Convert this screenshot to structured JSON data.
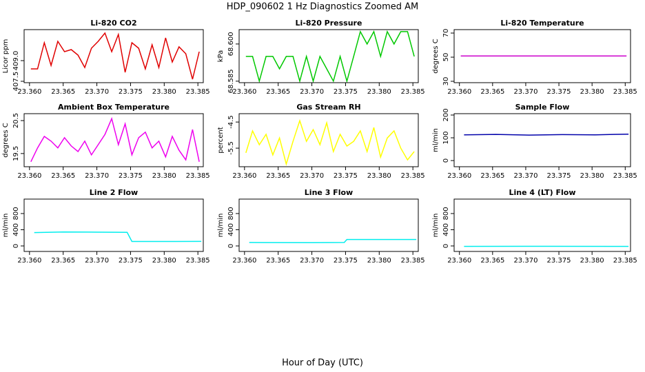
{
  "title": "HDP_090602  1 Hz Diagnostics Zoomed AM",
  "xlabel": "Hour of Day (UTC)",
  "chart_data": [
    {
      "type": "line",
      "title": "Li-820 CO2",
      "ylabel": "Licor ppm",
      "color": "#e00000",
      "x": [
        23.3602,
        23.3612,
        23.3622,
        23.3632,
        23.3642,
        23.3652,
        23.3662,
        23.3672,
        23.3682,
        23.3692,
        23.3702,
        23.3712,
        23.3722,
        23.3732,
        23.3742,
        23.3752,
        23.3762,
        23.3772,
        23.3782,
        23.3792,
        23.3802,
        23.3812,
        23.3822,
        23.3832,
        23.3842,
        23.3852
      ],
      "values": [
        408.4,
        408.4,
        410.3,
        408.65,
        410.4,
        409.65,
        409.8,
        409.4,
        408.5,
        409.9,
        410.4,
        411.0,
        409.65,
        410.9,
        408.15,
        410.3,
        409.9,
        408.4,
        410.15,
        408.5,
        410.65,
        408.9,
        410.0,
        409.5,
        407.65,
        409.65
      ],
      "xlim": [
        23.3592,
        23.3858
      ],
      "ylim": [
        407.4,
        411.25
      ],
      "xticks": [
        {
          "value": 23.36,
          "label": "23.360"
        },
        {
          "value": 23.365,
          "label": "23.365"
        },
        {
          "value": 23.37,
          "label": "23.370"
        },
        {
          "value": 23.375,
          "label": "23.375"
        },
        {
          "value": 23.38,
          "label": "23.380"
        },
        {
          "value": 23.385,
          "label": "23.385"
        }
      ],
      "yticks": [
        407.5,
        {
          "value": 409,
          "label": "409.0"
        }
      ]
    },
    {
      "type": "line",
      "title": "Li-820 Pressure",
      "ylabel": "kPa",
      "color": "#00c800",
      "x": [
        23.3602,
        23.3612,
        23.3622,
        23.3632,
        23.3642,
        23.3652,
        23.3662,
        23.3672,
        23.3682,
        23.3692,
        23.3702,
        23.3712,
        23.3722,
        23.3732,
        23.3742,
        23.3752,
        23.3762,
        23.3772,
        23.3782,
        23.3792,
        23.3802,
        23.3812,
        23.3822,
        23.3832,
        23.3842,
        23.3852
      ],
      "values": [
        68.595,
        68.595,
        68.585,
        68.595,
        68.595,
        68.59,
        68.595,
        68.595,
        68.585,
        68.595,
        68.585,
        68.595,
        68.59,
        68.585,
        68.595,
        68.585,
        68.595,
        68.605,
        68.6,
        68.605,
        68.595,
        68.605,
        68.6,
        68.605,
        68.605,
        68.595
      ],
      "xlim": [
        23.3592,
        23.3858
      ],
      "ylim": [
        68.5844,
        68.6058
      ],
      "xticks": [
        {
          "value": 23.36,
          "label": "23.360"
        },
        {
          "value": 23.365,
          "label": "23.365"
        },
        {
          "value": 23.37,
          "label": "23.370"
        },
        {
          "value": 23.375,
          "label": "23.375"
        },
        {
          "value": 23.38,
          "label": "23.380"
        },
        {
          "value": 23.385,
          "label": "23.385"
        }
      ],
      "yticks": [
        68.585,
        {
          "value": 68.6,
          "label": "68.600"
        }
      ]
    },
    {
      "type": "line",
      "title": "Li-820 Temperature",
      "ylabel": "degrees C",
      "color": "#cc00cc",
      "x": [
        23.3602,
        23.3852
      ],
      "values": [
        51,
        51
      ],
      "xlim": [
        23.3592,
        23.3858
      ],
      "ylim": [
        28.86,
        72.86
      ],
      "xticks": [
        {
          "value": 23.36,
          "label": "23.360"
        },
        {
          "value": 23.365,
          "label": "23.365"
        },
        {
          "value": 23.37,
          "label": "23.370"
        },
        {
          "value": 23.375,
          "label": "23.375"
        },
        {
          "value": 23.38,
          "label": "23.380"
        },
        {
          "value": 23.385,
          "label": "23.385"
        }
      ],
      "yticks": [
        30,
        50,
        70
      ]
    },
    {
      "type": "line",
      "title": "Ambient Box Temperature",
      "ylabel": "degrees C",
      "color": "#ee00ee",
      "x": [
        23.3602,
        23.3612,
        23.3622,
        23.3632,
        23.3642,
        23.3652,
        23.3662,
        23.3672,
        23.3682,
        23.3692,
        23.3702,
        23.3712,
        23.3722,
        23.3732,
        23.3742,
        23.3752,
        23.3762,
        23.3772,
        23.3782,
        23.3792,
        23.3802,
        23.3812,
        23.3822,
        23.3832,
        23.3842,
        23.3852
      ],
      "values": [
        19.25,
        19.67,
        20.02,
        19.875,
        19.67,
        19.98,
        19.73,
        19.56,
        19.875,
        19.46,
        19.77,
        20.08,
        20.56,
        19.77,
        20.4,
        19.46,
        19.98,
        20.15,
        19.67,
        19.875,
        19.4,
        20.02,
        19.6,
        19.31,
        20.23,
        19.25
      ],
      "xlim": [
        23.3592,
        23.3858
      ],
      "ylim": [
        19.1,
        20.71
      ],
      "xticks": [
        {
          "value": 23.36,
          "label": "23.360"
        },
        {
          "value": 23.365,
          "label": "23.365"
        },
        {
          "value": 23.37,
          "label": "23.370"
        },
        {
          "value": 23.375,
          "label": "23.375"
        },
        {
          "value": 23.38,
          "label": "23.380"
        },
        {
          "value": 23.385,
          "label": "23.385"
        }
      ],
      "yticks": [
        19.5,
        20.5
      ]
    },
    {
      "type": "line",
      "title": "Gas Stream RH",
      "ylabel": "percent",
      "color": "#ffff00",
      "x": [
        23.3602,
        23.3612,
        23.3622,
        23.3632,
        23.3642,
        23.3652,
        23.3662,
        23.3672,
        23.3682,
        23.3692,
        23.3702,
        23.3712,
        23.3722,
        23.3732,
        23.3742,
        23.3752,
        23.3762,
        23.3772,
        23.3782,
        23.3792,
        23.3802,
        23.3812,
        23.3822,
        23.3832,
        23.3842,
        23.3852
      ],
      "values": [
        -5.68,
        -4.84,
        -5.37,
        -4.97,
        -5.76,
        -5.11,
        -6.11,
        -5.24,
        -4.45,
        -5.24,
        -4.79,
        -5.37,
        -4.53,
        -5.63,
        -4.97,
        -5.42,
        -5.24,
        -4.84,
        -5.63,
        -4.71,
        -5.84,
        -5.11,
        -4.84,
        -5.5,
        -5.95,
        -5.63
      ],
      "xlim": [
        23.3592,
        23.3858
      ],
      "ylim": [
        -6.21,
        -4.18
      ],
      "xticks": [
        {
          "value": 23.36,
          "label": "23.360"
        },
        {
          "value": 23.365,
          "label": "23.365"
        },
        {
          "value": 23.37,
          "label": "23.370"
        },
        {
          "value": 23.375,
          "label": "23.375"
        },
        {
          "value": 23.38,
          "label": "23.380"
        },
        {
          "value": 23.385,
          "label": "23.385"
        }
      ],
      "yticks": [
        -5.5,
        -4.5
      ]
    },
    {
      "type": "line",
      "title": "Sample Flow",
      "ylabel": "ml/min",
      "color": "#0000aa",
      "x": [
        23.3607,
        23.3655,
        23.3705,
        23.3755,
        23.3805,
        23.3855
      ],
      "values": [
        113,
        115,
        112,
        114,
        113,
        116
      ],
      "xlim": [
        23.3592,
        23.3858
      ],
      "ylim": [
        -27,
        206
      ],
      "xticks": [
        {
          "value": 23.36,
          "label": "23.360"
        },
        {
          "value": 23.365,
          "label": "23.365"
        },
        {
          "value": 23.37,
          "label": "23.370"
        },
        {
          "value": 23.375,
          "label": "23.375"
        },
        {
          "value": 23.38,
          "label": "23.380"
        },
        {
          "value": 23.385,
          "label": "23.385"
        }
      ],
      "yticks": [
        0,
        100,
        200
      ]
    },
    {
      "type": "line",
      "title": "Line 2 Flow",
      "ylabel": "ml/min",
      "color": "#00eeee",
      "x": [
        23.3607,
        23.365,
        23.37,
        23.3745,
        23.3752,
        23.38,
        23.3855
      ],
      "values": [
        330,
        345,
        340,
        335,
        110,
        110,
        112
      ],
      "xlim": [
        23.3592,
        23.3858
      ],
      "ylim": [
        -136,
        1157
      ],
      "xticks": [
        {
          "value": 23.36,
          "label": "23.360"
        },
        {
          "value": 23.365,
          "label": "23.365"
        },
        {
          "value": 23.37,
          "label": "23.370"
        },
        {
          "value": 23.375,
          "label": "23.375"
        },
        {
          "value": 23.38,
          "label": "23.380"
        },
        {
          "value": 23.385,
          "label": "23.385"
        }
      ],
      "yticks": [
        0,
        400,
        800
      ]
    },
    {
      "type": "line",
      "title": "Line 3 Flow",
      "ylabel": "ml/min",
      "color": "#00eeee",
      "x": [
        23.3607,
        23.37,
        23.3748,
        23.3752,
        23.3855
      ],
      "values": [
        85,
        80,
        85,
        160,
        160
      ],
      "xlim": [
        23.3592,
        23.3858
      ],
      "ylim": [
        -136,
        1157
      ],
      "xticks": [
        {
          "value": 23.36,
          "label": "23.360"
        },
        {
          "value": 23.365,
          "label": "23.365"
        },
        {
          "value": 23.37,
          "label": "23.370"
        },
        {
          "value": 23.375,
          "label": "23.375"
        },
        {
          "value": 23.38,
          "label": "23.380"
        },
        {
          "value": 23.385,
          "label": "23.385"
        }
      ],
      "yticks": [
        0,
        400,
        800
      ]
    },
    {
      "type": "line",
      "title": "Line 4 (LT) Flow",
      "ylabel": "ml/min",
      "color": "#00eeee",
      "x": [
        23.3607,
        23.373,
        23.3855
      ],
      "values": [
        -10,
        -8,
        -10
      ],
      "xlim": [
        23.3592,
        23.3858
      ],
      "ylim": [
        -136,
        1157
      ],
      "xticks": [
        {
          "value": 23.36,
          "label": "23.360"
        },
        {
          "value": 23.365,
          "label": "23.365"
        },
        {
          "value": 23.37,
          "label": "23.370"
        },
        {
          "value": 23.375,
          "label": "23.375"
        },
        {
          "value": 23.38,
          "label": "23.380"
        },
        {
          "value": 23.385,
          "label": "23.385"
        }
      ],
      "yticks": [
        0,
        400,
        800
      ]
    }
  ]
}
